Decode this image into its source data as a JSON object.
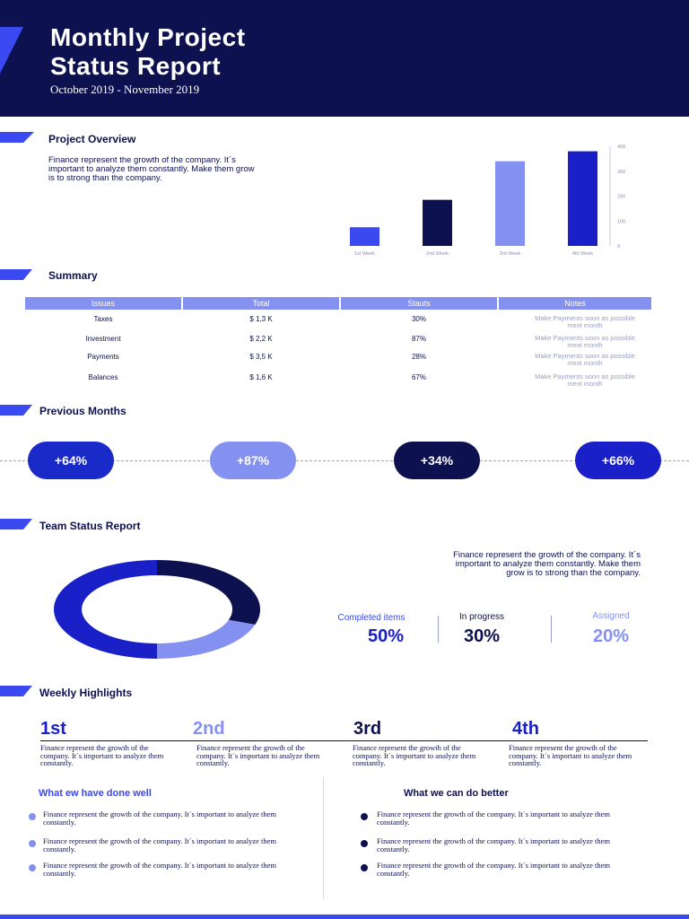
{
  "header": {
    "title_line1": "Monthly Project",
    "title_line2": "Status Report",
    "subtitle": "October 2019 - November 2019"
  },
  "overview": {
    "title": "Project Overview",
    "text": "Finance represent the growth of the company. It´s important to analyze them constantly. Make them grow is to strong than the company."
  },
  "chart_data": {
    "type": "bar",
    "title": "",
    "categories": [
      "1st Week",
      "2nd Week",
      "3rd Week",
      "4th Week"
    ],
    "values": [
      75,
      185,
      340,
      380
    ],
    "colors": [
      "#3a4af0",
      "#0d1150",
      "#8491f0",
      "#1a20c8"
    ],
    "yticks": [
      "0",
      "100",
      "200",
      "300",
      "400"
    ],
    "ylim": [
      0,
      400
    ],
    "xlabel": "",
    "ylabel": ""
  },
  "summary": {
    "title": "Summary",
    "headers": [
      "Issues",
      "Total",
      "Stauts",
      "Notes"
    ],
    "rows": [
      {
        "issue": "Taxes",
        "total": "$ 1,3 K",
        "status": "30%",
        "note": "Make Payments soon as possible mext month"
      },
      {
        "issue": "Investment",
        "total": "$ 2,2 K",
        "status": "87%",
        "note": "Make Payments soon as possible mext month"
      },
      {
        "issue": "Payments",
        "total": "$ 3,5 K",
        "status": "28%",
        "note": "Make Payments soon as possible mext month"
      },
      {
        "issue": "Balances",
        "total": "$ 1,6 K",
        "status": "67%",
        "note": "Make Payments soon as possible mext month"
      }
    ]
  },
  "previous": {
    "title": "Previous Months",
    "values": [
      "+64%",
      "+87%",
      "+34%",
      "+66%"
    ]
  },
  "team": {
    "title": "Team Status Report",
    "text": "Finance represent the growth of the company. It´s important to analyze them constantly. Make them grow is to strong than the company.",
    "completed_label": "Completed items",
    "completed_value": "50%",
    "progress_label": "In progress",
    "progress_value": "30%",
    "assigned_label": "Assigned",
    "assigned_value": "20%",
    "donut": [
      {
        "name": "Completed items",
        "value": 50,
        "color": "#1a20c8"
      },
      {
        "name": "In progress",
        "value": 30,
        "color": "#0d1150"
      },
      {
        "name": "Assigned",
        "value": 20,
        "color": "#8491f0"
      }
    ]
  },
  "weekly": {
    "title": "Weekly Highlights",
    "items": [
      {
        "ord": "1st",
        "text": "Finance represent the growth of the company. It´s important to analyze them constantly."
      },
      {
        "ord": "2nd",
        "text": "Finance represent the growth of the company. It´s important to analyze them constantly."
      },
      {
        "ord": "3rd",
        "text": "Finance represent the growth of the company. It´s important to analyze them constantly."
      },
      {
        "ord": "4th",
        "text": "Finance represent the growth of the company. It´s important to analyze them constantly."
      }
    ]
  },
  "well": {
    "title": "What ew have done well",
    "items": [
      "Finance represent the growth of the company. It´s important to analyze them constantly.",
      "Finance represent the growth of the company. It´s important to analyze them constantly.",
      "Finance represent the growth of the company. It´s important to analyze them constantly."
    ]
  },
  "better": {
    "title": "What we can do better",
    "items": [
      "Finance represent the growth of the company. It´s important to analyze them constantly.",
      "Finance represent the growth of the company. It´s important to analyze them constantly.",
      "Finance represent the growth of the company. It´s important to analyze them constantly."
    ]
  },
  "colors": {
    "navy": "#0d1150",
    "blue": "#3a4af0",
    "periwinkle": "#8491f0",
    "royal": "#1a20c8"
  }
}
